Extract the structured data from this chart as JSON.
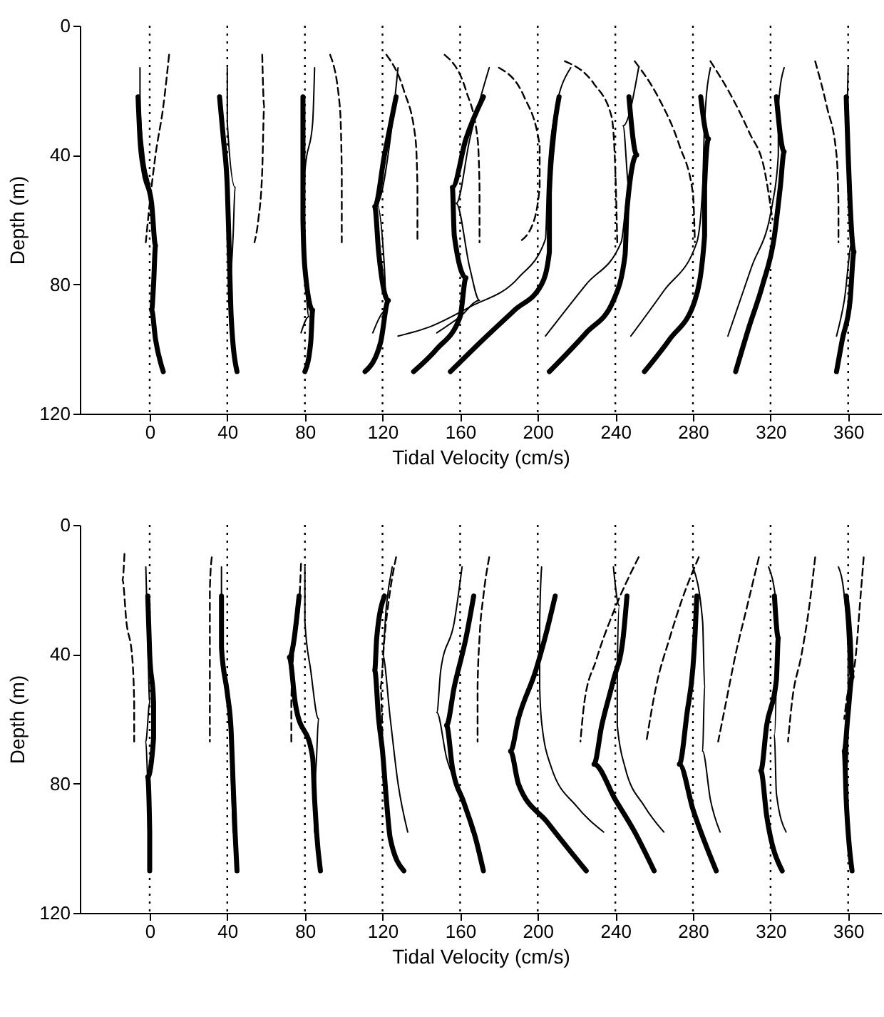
{
  "chart_data": [
    {
      "type": "line",
      "xlabel": "Tidal Velocity (cm/s)",
      "ylabel": "Depth (m)",
      "xlim": [
        -36,
        377
      ],
      "xticks": [
        0,
        40,
        80,
        120,
        160,
        200,
        240,
        280,
        320,
        360
      ],
      "ylim": [
        120,
        0
      ],
      "yticks": [
        0,
        40,
        80,
        120
      ],
      "ref_lines": [
        {
          "axis": "x",
          "value": 0,
          "line_style": "dotted",
          "color": "#000000"
        },
        {
          "axis": "x",
          "value": 40,
          "line_style": "dotted",
          "color": "#000000"
        },
        {
          "axis": "x",
          "value": 80,
          "line_style": "dotted",
          "color": "#000000"
        },
        {
          "axis": "x",
          "value": 120,
          "line_style": "dotted",
          "color": "#000000"
        },
        {
          "axis": "x",
          "value": 160,
          "line_style": "dotted",
          "color": "#000000"
        },
        {
          "axis": "x",
          "value": 200,
          "line_style": "dotted",
          "color": "#000000"
        },
        {
          "axis": "x",
          "value": 240,
          "line_style": "dotted",
          "color": "#000000"
        },
        {
          "axis": "x",
          "value": 280,
          "line_style": "dotted",
          "color": "#000000"
        },
        {
          "axis": "x",
          "value": 320,
          "line_style": "dotted",
          "color": "#000000"
        },
        {
          "axis": "x",
          "value": 360,
          "line_style": "dotted",
          "color": "#000000"
        }
      ],
      "series": [
        {
          "color": "#000000",
          "line_style": "solid",
          "x": [
            -6,
            -5,
            -3,
            1,
            3,
            2,
            1,
            3,
            7
          ],
          "values": [
            22,
            35,
            45,
            55,
            68,
            80,
            88,
            97,
            107
          ]
        },
        {
          "color": "#000000",
          "line_style": "solid",
          "x": [
            -5,
            -5,
            -3,
            1,
            2
          ],
          "values": [
            13,
            25,
            40,
            55,
            67
          ]
        },
        {
          "color": "#000000",
          "line_style": "dashed",
          "x": [
            10,
            7,
            3,
            0,
            -2
          ],
          "values": [
            9,
            25,
            40,
            55,
            67
          ]
        },
        {
          "color": "#000000",
          "line_style": "solid",
          "x": [
            36,
            38,
            40,
            41,
            42,
            45
          ],
          "values": [
            22,
            35,
            50,
            70,
            90,
            107
          ]
        },
        {
          "color": "#000000",
          "line_style": "solid",
          "x": [
            40,
            40,
            44,
            43,
            41,
            42
          ],
          "values": [
            13,
            30,
            50,
            65,
            80,
            95
          ]
        },
        {
          "color": "#000000",
          "line_style": "dashed",
          "x": [
            58,
            59,
            58,
            56,
            54
          ],
          "values": [
            9,
            25,
            45,
            60,
            67
          ]
        },
        {
          "color": "#000000",
          "line_style": "solid",
          "x": [
            79,
            79,
            79,
            80,
            84,
            83,
            80
          ],
          "values": [
            22,
            40,
            60,
            75,
            88,
            98,
            107
          ]
        },
        {
          "color": "#000000",
          "line_style": "solid",
          "x": [
            85,
            84,
            80,
            79,
            82,
            78
          ],
          "values": [
            13,
            30,
            45,
            70,
            90,
            95
          ]
        },
        {
          "color": "#000000",
          "line_style": "dashed",
          "x": [
            93,
            98,
            99,
            99
          ],
          "values": [
            9,
            25,
            45,
            67
          ]
        },
        {
          "color": "#000000",
          "line_style": "solid",
          "x": [
            127,
            121,
            116,
            118,
            123,
            119,
            111
          ],
          "values": [
            22,
            40,
            56,
            70,
            85,
            98,
            107
          ]
        },
        {
          "color": "#000000",
          "line_style": "solid",
          "x": [
            128,
            124,
            117,
            121,
            122,
            115
          ],
          "values": [
            13,
            35,
            55,
            75,
            88,
            95
          ]
        },
        {
          "color": "#000000",
          "line_style": "dashed",
          "x": [
            122,
            131,
            137,
            138,
            138
          ],
          "values": [
            9,
            20,
            35,
            50,
            67
          ]
        },
        {
          "color": "#000000",
          "line_style": "solid",
          "x": [
            172,
            163,
            156,
            157,
            163,
            160,
            148,
            136
          ],
          "values": [
            22,
            35,
            50,
            65,
            78,
            90,
            100,
            107
          ]
        },
        {
          "color": "#000000",
          "line_style": "solid",
          "x": [
            175,
            165,
            158,
            165,
            170,
            160,
            148
          ],
          "values": [
            13,
            35,
            55,
            75,
            85,
            90,
            95
          ]
        },
        {
          "color": "#000000",
          "line_style": "dashed",
          "x": [
            152,
            163,
            169,
            170,
            170
          ],
          "values": [
            9,
            20,
            35,
            50,
            67
          ]
        },
        {
          "color": "#000000",
          "line_style": "solid",
          "x": [
            211,
            208,
            206,
            206,
            202,
            188,
            172,
            155
          ],
          "values": [
            22,
            35,
            52,
            70,
            80,
            88,
            97,
            107
          ]
        },
        {
          "color": "#000000",
          "line_style": "solid",
          "x": [
            217,
            208,
            205,
            204,
            190,
            165,
            145,
            128
          ],
          "values": [
            13,
            30,
            50,
            66,
            78,
            87,
            93,
            96
          ]
        },
        {
          "color": "#000000",
          "line_style": "dashed",
          "x": [
            180,
            193,
            201,
            201,
            197,
            190
          ],
          "values": [
            13,
            22,
            37,
            50,
            62,
            67
          ]
        },
        {
          "color": "#000000",
          "line_style": "solid",
          "x": [
            247,
            251,
            246,
            245,
            239,
            225,
            206
          ],
          "values": [
            22,
            40,
            57,
            71,
            85,
            95,
            107
          ]
        },
        {
          "color": "#000000",
          "line_style": "solid",
          "x": [
            252,
            244,
            247,
            243,
            225,
            204
          ],
          "values": [
            13,
            31,
            50,
            67,
            80,
            96
          ]
        },
        {
          "color": "#000000",
          "line_style": "dashed",
          "x": [
            214,
            229,
            238,
            240,
            241
          ],
          "values": [
            11,
            18,
            28,
            45,
            67
          ]
        },
        {
          "color": "#000000",
          "line_style": "solid",
          "x": [
            284,
            288,
            286,
            286,
            281,
            268,
            255
          ],
          "values": [
            22,
            35,
            50,
            65,
            85,
            97,
            107
          ]
        },
        {
          "color": "#000000",
          "line_style": "solid",
          "x": [
            289,
            286,
            285,
            282,
            265,
            248
          ],
          "values": [
            13,
            30,
            50,
            67,
            82,
            96
          ]
        },
        {
          "color": "#000000",
          "line_style": "dashed",
          "x": [
            250,
            262,
            273,
            280,
            281
          ],
          "values": [
            11,
            22,
            37,
            52,
            67
          ]
        },
        {
          "color": "#000000",
          "line_style": "solid",
          "x": [
            323,
            327,
            325,
            322,
            316,
            309,
            302
          ],
          "values": [
            22,
            39,
            50,
            65,
            80,
            93,
            107
          ]
        },
        {
          "color": "#000000",
          "line_style": "solid",
          "x": [
            327,
            324,
            324,
            321,
            310,
            298
          ],
          "values": [
            13,
            25,
            40,
            55,
            75,
            96
          ]
        },
        {
          "color": "#000000",
          "line_style": "dashed",
          "x": [
            289,
            300,
            309,
            317,
            321
          ],
          "values": [
            11,
            22,
            33,
            45,
            60
          ]
        },
        {
          "color": "#000000",
          "line_style": "solid",
          "x": [
            359,
            360,
            361,
            363,
            361,
            357,
            354
          ],
          "values": [
            22,
            40,
            55,
            70,
            85,
            97,
            107
          ]
        },
        {
          "color": "#000000",
          "line_style": "solid",
          "x": [
            360,
            359,
            360,
            362,
            358,
            354
          ],
          "values": [
            13,
            30,
            50,
            67,
            85,
            96
          ]
        },
        {
          "color": "#000000",
          "line_style": "dashed",
          "x": [
            343,
            349,
            354,
            355,
            355
          ],
          "values": [
            11,
            25,
            40,
            55,
            67
          ]
        }
      ]
    },
    {
      "type": "line",
      "xlabel": "Tidal Velocity (cm/s)",
      "ylabel": "Depth (m)",
      "xlim": [
        -36,
        377
      ],
      "xticks": [
        0,
        40,
        80,
        120,
        160,
        200,
        240,
        280,
        320,
        360
      ],
      "ylim": [
        120,
        0
      ],
      "yticks": [
        0,
        40,
        80,
        120
      ],
      "ref_lines": [
        {
          "axis": "x",
          "value": 0,
          "line_style": "dotted",
          "color": "#000000"
        },
        {
          "axis": "x",
          "value": 40,
          "line_style": "dotted",
          "color": "#000000"
        },
        {
          "axis": "x",
          "value": 80,
          "line_style": "dotted",
          "color": "#000000"
        },
        {
          "axis": "x",
          "value": 120,
          "line_style": "dotted",
          "color": "#000000"
        },
        {
          "axis": "x",
          "value": 160,
          "line_style": "dotted",
          "color": "#000000"
        },
        {
          "axis": "x",
          "value": 200,
          "line_style": "dotted",
          "color": "#000000"
        },
        {
          "axis": "x",
          "value": 240,
          "line_style": "dotted",
          "color": "#000000"
        },
        {
          "axis": "x",
          "value": 280,
          "line_style": "dotted",
          "color": "#000000"
        },
        {
          "axis": "x",
          "value": 320,
          "line_style": "dotted",
          "color": "#000000"
        },
        {
          "axis": "x",
          "value": 360,
          "line_style": "dotted",
          "color": "#000000"
        }
      ],
      "series": [
        {
          "color": "#000000",
          "line_style": "solid",
          "x": [
            -1,
            0,
            2,
            2,
            -1,
            0,
            0
          ],
          "values": [
            22,
            40,
            55,
            66,
            78,
            95,
            107
          ]
        },
        {
          "color": "#000000",
          "line_style": "solid",
          "x": [
            -2,
            -1,
            0,
            -2,
            -1,
            0
          ],
          "values": [
            13,
            35,
            55,
            67,
            80,
            95
          ]
        },
        {
          "color": "#000000",
          "line_style": "dashed",
          "x": [
            -13,
            -14,
            -12,
            -9,
            -8,
            -8
          ],
          "values": [
            9,
            17,
            30,
            41,
            55,
            67
          ]
        },
        {
          "color": "#000000",
          "line_style": "solid",
          "x": [
            37,
            37,
            40,
            42,
            43,
            44,
            45
          ],
          "values": [
            22,
            38,
            52,
            64,
            80,
            95,
            107
          ]
        },
        {
          "color": "#000000",
          "line_style": "solid",
          "x": [
            37,
            37,
            38,
            41,
            42,
            43
          ],
          "values": [
            13,
            30,
            45,
            60,
            75,
            95
          ]
        },
        {
          "color": "#000000",
          "line_style": "dashed",
          "x": [
            32,
            31,
            31,
            31,
            31
          ],
          "values": [
            10,
            20,
            40,
            55,
            67
          ]
        },
        {
          "color": "#000000",
          "line_style": "solid",
          "x": [
            77,
            72,
            75,
            84,
            85,
            86,
            88
          ],
          "values": [
            22,
            41,
            55,
            72,
            85,
            95,
            107
          ]
        },
        {
          "color": "#000000",
          "line_style": "solid",
          "x": [
            80,
            80,
            83,
            87,
            86,
            85,
            85
          ],
          "values": [
            13,
            30,
            45,
            60,
            72,
            85,
            95
          ]
        },
        {
          "color": "#000000",
          "line_style": "dashed",
          "x": [
            78,
            77,
            74,
            73,
            73
          ],
          "values": [
            12,
            25,
            40,
            55,
            67
          ]
        },
        {
          "color": "#000000",
          "line_style": "solid",
          "x": [
            121,
            117,
            116,
            118,
            120,
            122,
            124,
            131
          ],
          "values": [
            22,
            35,
            45,
            60,
            70,
            85,
            97,
            107
          ]
        },
        {
          "color": "#000000",
          "line_style": "solid",
          "x": [
            125,
            122,
            120,
            124,
            128,
            133
          ],
          "values": [
            13,
            25,
            40,
            60,
            80,
            95
          ]
        },
        {
          "color": "#000000",
          "line_style": "dashed",
          "x": [
            127,
            124,
            121,
            119,
            120
          ],
          "values": [
            10,
            20,
            35,
            50,
            67
          ]
        },
        {
          "color": "#000000",
          "line_style": "solid",
          "x": [
            167,
            163,
            157,
            153,
            156,
            162,
            168,
            172
          ],
          "values": [
            22,
            35,
            50,
            62,
            75,
            86,
            97,
            107
          ]
        },
        {
          "color": "#000000",
          "line_style": "solid",
          "x": [
            161,
            157,
            150,
            148,
            153,
            160,
            166
          ],
          "values": [
            13,
            30,
            45,
            58,
            72,
            83,
            95
          ]
        },
        {
          "color": "#000000",
          "line_style": "dashed",
          "x": [
            175,
            172,
            170,
            169,
            169
          ],
          "values": [
            10,
            22,
            35,
            50,
            67
          ]
        },
        {
          "color": "#000000",
          "line_style": "solid",
          "x": [
            209,
            205,
            199,
            190,
            186,
            190,
            205,
            225
          ],
          "values": [
            22,
            32,
            45,
            60,
            70,
            80,
            92,
            107
          ]
        },
        {
          "color": "#000000",
          "line_style": "solid",
          "x": [
            202,
            201,
            201,
            202,
            207,
            220,
            234
          ],
          "values": [
            13,
            30,
            50,
            61,
            75,
            87,
            95
          ]
        },
        {
          "color": "#000000",
          "line_style": "dashed",
          "x": [
            252,
            239,
            230,
            224,
            222
          ],
          "values": [
            10,
            27,
            42,
            55,
            67
          ]
        },
        {
          "color": "#000000",
          "line_style": "solid",
          "x": [
            246,
            244,
            239,
            233,
            229,
            240,
            250,
            260
          ],
          "values": [
            22,
            35,
            48,
            62,
            74,
            85,
            95,
            107
          ]
        },
        {
          "color": "#000000",
          "line_style": "solid",
          "x": [
            239,
            242,
            241,
            241,
            245,
            255,
            265
          ],
          "values": [
            13,
            25,
            45,
            62,
            75,
            87,
            95
          ]
        },
        {
          "color": "#000000",
          "line_style": "dashed",
          "x": [
            283,
            275,
            268,
            261,
            256
          ],
          "values": [
            10,
            22,
            35,
            50,
            67
          ]
        },
        {
          "color": "#000000",
          "line_style": "solid",
          "x": [
            282,
            281,
            280,
            277,
            273,
            280,
            292
          ],
          "values": [
            22,
            35,
            44,
            58,
            74,
            88,
            107
          ]
        },
        {
          "color": "#000000",
          "line_style": "solid",
          "x": [
            280,
            285,
            286,
            285,
            289,
            294
          ],
          "values": [
            13,
            30,
            50,
            70,
            85,
            95
          ]
        },
        {
          "color": "#000000",
          "line_style": "dashed",
          "x": [
            314,
            308,
            302,
            297,
            293
          ],
          "values": [
            10,
            25,
            40,
            55,
            67
          ]
        },
        {
          "color": "#000000",
          "line_style": "solid",
          "x": [
            322,
            324,
            323,
            318,
            315,
            318,
            326
          ],
          "values": [
            22,
            35,
            48,
            62,
            76,
            90,
            107
          ]
        },
        {
          "color": "#000000",
          "line_style": "solid",
          "x": [
            319,
            323,
            323,
            322,
            323,
            328
          ],
          "values": [
            13,
            25,
            45,
            65,
            83,
            95
          ]
        },
        {
          "color": "#000000",
          "line_style": "dashed",
          "x": [
            343,
            340,
            336,
            331,
            329
          ],
          "values": [
            10,
            25,
            40,
            55,
            67
          ]
        },
        {
          "color": "#000000",
          "line_style": "solid",
          "x": [
            359,
            361,
            362,
            360,
            358,
            359,
            362
          ],
          "values": [
            22,
            35,
            47,
            58,
            70,
            85,
            107
          ]
        },
        {
          "color": "#000000",
          "line_style": "solid",
          "x": [
            355,
            358,
            360,
            360,
            359,
            360
          ],
          "values": [
            13,
            22,
            40,
            60,
            80,
            95
          ]
        },
        {
          "color": "#000000",
          "line_style": "dashed",
          "x": [
            368,
            366,
            364,
            359,
            358
          ],
          "values": [
            10,
            25,
            40,
            55,
            60
          ]
        }
      ]
    }
  ]
}
